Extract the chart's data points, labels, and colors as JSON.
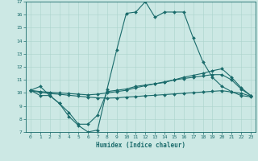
{
  "xlabel": "Humidex (Indice chaleur)",
  "bg_color": "#cce8e4",
  "line_color": "#1a6b6b",
  "grid_color": "#aad4cc",
  "xlim": [
    -0.5,
    23.5
  ],
  "ylim": [
    7,
    17
  ],
  "xticks": [
    0,
    1,
    2,
    3,
    4,
    5,
    6,
    7,
    8,
    9,
    10,
    11,
    12,
    13,
    14,
    15,
    16,
    17,
    18,
    19,
    20,
    21,
    22,
    23
  ],
  "yticks": [
    7,
    8,
    9,
    10,
    11,
    12,
    13,
    14,
    15,
    16,
    17
  ],
  "lines": [
    {
      "x": [
        0,
        1,
        2,
        3,
        4,
        5,
        6,
        7,
        8,
        9,
        10,
        11,
        12,
        13,
        14,
        15,
        16,
        17,
        18,
        19,
        20,
        21,
        22,
        23
      ],
      "y": [
        10.2,
        10.5,
        9.8,
        9.2,
        8.2,
        7.5,
        7.0,
        7.15,
        10.3,
        13.3,
        16.1,
        16.2,
        17.0,
        15.8,
        16.2,
        16.2,
        16.2,
        14.2,
        12.4,
        11.2,
        10.5,
        10.1,
        9.8,
        9.7
      ]
    },
    {
      "x": [
        0,
        1,
        2,
        3,
        4,
        5,
        6,
        7,
        8,
        9,
        10,
        11,
        12,
        13,
        14,
        15,
        16,
        17,
        18,
        19,
        20,
        21,
        22,
        23
      ],
      "y": [
        10.2,
        9.8,
        9.8,
        9.2,
        8.5,
        7.6,
        7.6,
        8.3,
        10.1,
        10.2,
        10.3,
        10.5,
        10.6,
        10.7,
        10.8,
        11.0,
        11.1,
        11.2,
        11.3,
        11.4,
        11.4,
        11.0,
        10.3,
        9.8
      ]
    },
    {
      "x": [
        0,
        1,
        2,
        3,
        4,
        5,
        6,
        7,
        8,
        9,
        10,
        11,
        12,
        13,
        14,
        15,
        16,
        17,
        18,
        19,
        20,
        21,
        22,
        23
      ],
      "y": [
        10.2,
        10.1,
        10.05,
        10.0,
        9.95,
        9.9,
        9.85,
        9.9,
        10.0,
        10.1,
        10.2,
        10.4,
        10.55,
        10.7,
        10.85,
        11.0,
        11.2,
        11.35,
        11.5,
        11.7,
        11.85,
        11.2,
        10.4,
        9.8
      ]
    },
    {
      "x": [
        0,
        1,
        2,
        3,
        4,
        5,
        6,
        7,
        8,
        9,
        10,
        11,
        12,
        13,
        14,
        15,
        16,
        17,
        18,
        19,
        20,
        21,
        22,
        23
      ],
      "y": [
        10.15,
        10.05,
        9.95,
        9.9,
        9.82,
        9.75,
        9.68,
        9.62,
        9.6,
        9.62,
        9.68,
        9.72,
        9.78,
        9.82,
        9.87,
        9.92,
        9.97,
        10.02,
        10.07,
        10.12,
        10.17,
        10.07,
        9.98,
        9.75
      ]
    }
  ]
}
